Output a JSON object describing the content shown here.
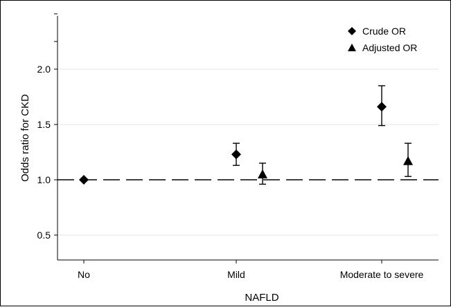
{
  "chart_data": {
    "type": "scatter",
    "xlabel": "NAFLD",
    "ylabel": "Odds ratio for CKD",
    "categories": [
      "No",
      "Mild",
      "Moderate to severe"
    ],
    "ylim": [
      0.28,
      2.5
    ],
    "yticks": [
      "0.5",
      "1.0",
      "1.5",
      "2.0"
    ],
    "reference_line": 1.0,
    "grid": "horizontal",
    "legend_position": "top-right",
    "series": [
      {
        "name": "Crude OR",
        "marker": "diamond",
        "points": [
          {
            "category": "No",
            "value": 1.0,
            "ci_low": null,
            "ci_high": null
          },
          {
            "category": "Mild",
            "value": 1.23,
            "ci_low": 1.13,
            "ci_high": 1.33
          },
          {
            "category": "Moderate to severe",
            "value": 1.66,
            "ci_low": 1.49,
            "ci_high": 1.85
          }
        ]
      },
      {
        "name": "Adjusted OR",
        "marker": "triangle",
        "points": [
          {
            "category": "Mild",
            "value": 1.05,
            "ci_low": 0.96,
            "ci_high": 1.15
          },
          {
            "category": "Moderate to severe",
            "value": 1.17,
            "ci_low": 1.03,
            "ci_high": 1.33
          }
        ]
      }
    ]
  }
}
